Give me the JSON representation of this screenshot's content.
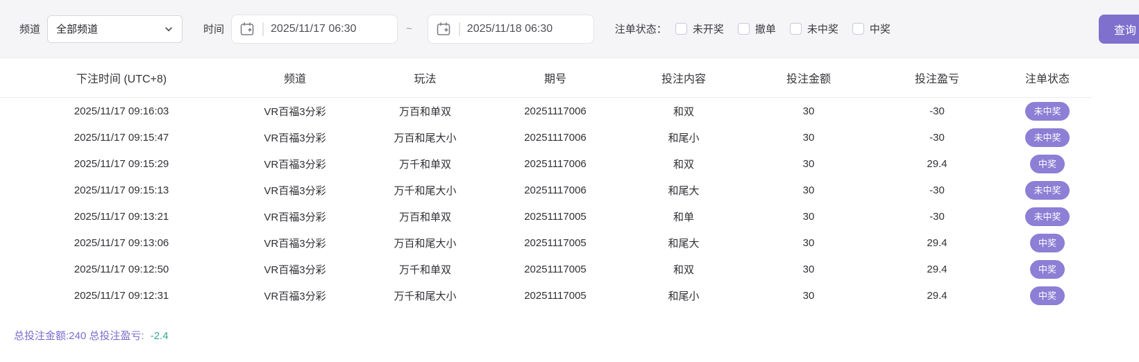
{
  "filter_bar": {
    "channel_label": "频道",
    "channel_value": "全部频道",
    "time_label": "时间",
    "time_from": "2025/11/17 06:30",
    "time_separator": "~",
    "time_to": "2025/11/18 06:30",
    "status_label": "注单状态：",
    "status_options": [
      {
        "name": "not-drawn",
        "label": "未开奖",
        "checked": false
      },
      {
        "name": "cancelled",
        "label": "撤单",
        "checked": false
      },
      {
        "name": "not-won",
        "label": "未中奖",
        "checked": false
      },
      {
        "name": "won",
        "label": "中奖",
        "checked": false
      }
    ],
    "query_button": "查询"
  },
  "table": {
    "columns": [
      "下注时间 (UTC+8)",
      "频道",
      "玩法",
      "期号",
      "投注内容",
      "投注金额",
      "投注盈亏",
      "注单状态"
    ],
    "rows": [
      {
        "time": "2025/11/17 09:16:03",
        "channel": "VR百福3分彩",
        "play": "万百和单双",
        "issue": "20251117006",
        "content": "和双",
        "amount": "30",
        "profit": "-30",
        "result": "lose",
        "status": "未中奖"
      },
      {
        "time": "2025/11/17 09:15:47",
        "channel": "VR百福3分彩",
        "play": "万百和尾大小",
        "issue": "20251117006",
        "content": "和尾小",
        "amount": "30",
        "profit": "-30",
        "result": "lose",
        "status": "未中奖"
      },
      {
        "time": "2025/11/17 09:15:29",
        "channel": "VR百福3分彩",
        "play": "万千和单双",
        "issue": "20251117006",
        "content": "和双",
        "amount": "30",
        "profit": "29.4",
        "result": "win",
        "status": "中奖"
      },
      {
        "time": "2025/11/17 09:15:13",
        "channel": "VR百福3分彩",
        "play": "万千和尾大小",
        "issue": "20251117006",
        "content": "和尾大",
        "amount": "30",
        "profit": "-30",
        "result": "lose",
        "status": "未中奖"
      },
      {
        "time": "2025/11/17 09:13:21",
        "channel": "VR百福3分彩",
        "play": "万百和单双",
        "issue": "20251117005",
        "content": "和单",
        "amount": "30",
        "profit": "-30",
        "result": "lose",
        "status": "未中奖"
      },
      {
        "time": "2025/11/17 09:13:06",
        "channel": "VR百福3分彩",
        "play": "万百和尾大小",
        "issue": "20251117005",
        "content": "和尾大",
        "amount": "30",
        "profit": "29.4",
        "result": "win",
        "status": "中奖"
      },
      {
        "time": "2025/11/17 09:12:50",
        "channel": "VR百福3分彩",
        "play": "万千和单双",
        "issue": "20251117005",
        "content": "和双",
        "amount": "30",
        "profit": "29.4",
        "result": "win",
        "status": "中奖"
      },
      {
        "time": "2025/11/17 09:12:31",
        "channel": "VR百福3分彩",
        "play": "万千和尾大小",
        "issue": "20251117005",
        "content": "和尾小",
        "amount": "30",
        "profit": "29.4",
        "result": "win",
        "status": "中奖"
      }
    ]
  },
  "summary": {
    "totals_text": "总投注金额:240 总投注盈亏:",
    "total_profit": "-2.4"
  },
  "colors": {
    "accent_purple": "#8070cd",
    "badge_purple": "#8c7fd5",
    "profit_win_red": "#e6496e",
    "profit_lose_green": "#33a694",
    "filter_bar_bg": "#f5f5f7"
  }
}
